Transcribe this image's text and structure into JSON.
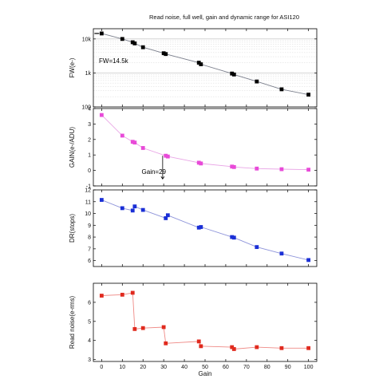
{
  "figure": {
    "title": "Read noise, full well, gain and dynamic range for ASI120",
    "xlabel": "Gain"
  },
  "chart_data": [
    {
      "type": "line",
      "ylabel": "FW(e-)",
      "yscale": "log",
      "ylim": [
        100,
        20000
      ],
      "yticks": [
        100,
        1000,
        10000
      ],
      "ytick_labels": [
        "100",
        "1k",
        "10k"
      ],
      "xlim": [
        -4,
        104
      ],
      "xticks": [
        0,
        10,
        20,
        30,
        40,
        50,
        60,
        70,
        80,
        90,
        100
      ],
      "grid": true,
      "color": "#000000",
      "marker": "square",
      "series": [
        {
          "x": [
            0,
            10,
            15,
            16,
            20,
            30,
            31,
            47,
            48,
            63,
            64,
            75,
            87,
            100
          ],
          "y": [
            14500,
            10000,
            8000,
            7400,
            5700,
            3800,
            3600,
            2000,
            1800,
            960,
            900,
            560,
            330,
            230
          ]
        }
      ],
      "annotations": [
        {
          "text": "FW=14.5k"
        }
      ]
    },
    {
      "type": "line",
      "ylabel": "GAIN(e-/ADU)",
      "ylim": [
        -1,
        4
      ],
      "yticks": [
        -1,
        0,
        1,
        2,
        3,
        4
      ],
      "ytick_labels": [
        "-1",
        "0",
        "1",
        "2",
        "3",
        "4"
      ],
      "xlim": [
        -4,
        104
      ],
      "xticks": [
        0,
        10,
        20,
        30,
        40,
        50,
        60,
        70,
        80,
        90,
        100
      ],
      "grid": false,
      "color": "#e84ad8",
      "marker": "square",
      "series": [
        {
          "x": [
            0,
            10,
            15,
            16,
            20,
            31,
            32,
            47,
            48,
            63,
            64,
            75,
            87,
            100
          ],
          "y": [
            3.58,
            2.25,
            1.85,
            1.8,
            1.45,
            0.95,
            0.9,
            0.5,
            0.45,
            0.25,
            0.22,
            0.12,
            0.08,
            0.05
          ]
        }
      ],
      "annotations": [
        {
          "text": "Gain=29"
        }
      ]
    },
    {
      "type": "line",
      "ylabel": "DR(stops)",
      "ylim": [
        5.5,
        12
      ],
      "yticks": [
        6,
        7,
        8,
        9,
        10,
        11,
        12
      ],
      "ytick_labels": [
        "6",
        "7",
        "8",
        "9",
        "10",
        "11",
        "12"
      ],
      "xlim": [
        -4,
        104
      ],
      "xticks": [
        0,
        10,
        20,
        30,
        40,
        50,
        60,
        70,
        80,
        90,
        100
      ],
      "grid": false,
      "color": "#1a2fd6",
      "marker": "square",
      "series": [
        {
          "x": [
            0,
            10,
            15,
            16,
            20,
            31,
            32,
            47,
            48,
            63,
            64,
            75,
            87,
            100
          ],
          "y": [
            11.15,
            10.45,
            10.25,
            10.6,
            10.3,
            9.6,
            9.85,
            8.8,
            8.85,
            8.0,
            7.95,
            7.15,
            6.6,
            6.05
          ]
        }
      ]
    },
    {
      "type": "line",
      "ylabel": "Read noise(e-rms)",
      "ylim": [
        2.9,
        7
      ],
      "yticks": [
        3,
        4,
        5,
        6
      ],
      "ytick_labels": [
        "3",
        "4",
        "5",
        "6"
      ],
      "xlim": [
        -4,
        104
      ],
      "xticks": [
        0,
        10,
        20,
        30,
        40,
        50,
        60,
        70,
        80,
        90,
        100
      ],
      "xtick_labels": [
        "0",
        "10",
        "20",
        "30",
        "40",
        "50",
        "60",
        "70",
        "80",
        "90",
        "100"
      ],
      "grid": false,
      "color": "#e02a1e",
      "marker": "square",
      "series": [
        {
          "x": [
            0,
            10,
            15,
            16,
            20,
            30,
            31,
            47,
            48,
            63,
            64,
            75,
            87,
            100
          ],
          "y": [
            6.35,
            6.4,
            6.5,
            4.6,
            4.65,
            4.7,
            3.85,
            3.95,
            3.7,
            3.65,
            3.55,
            3.65,
            3.6,
            3.6
          ]
        }
      ]
    }
  ]
}
